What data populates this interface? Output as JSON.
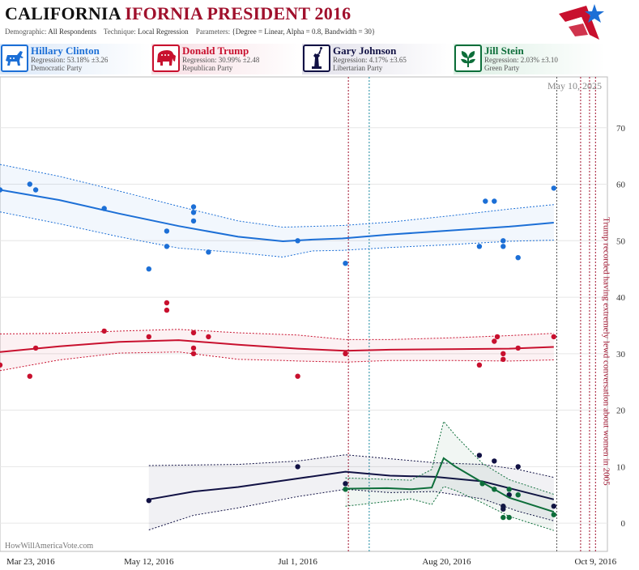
{
  "header": {
    "title_part1": "CALIFORNIA",
    "title_part2": "IFORNIA PRESIDENT 2016",
    "demographic_label": "Demographic:",
    "demographic_value": "All Respondents",
    "technique_label": "Technique:",
    "technique_value": "Local Regression",
    "parameters_label": "Parameters:",
    "parameters_value": "{Degree = Linear, Alpha = 0.8, Bandwidth = 30}"
  },
  "candidates": [
    {
      "name": "Hillary Clinton",
      "regression": "Regression: 53.18% ±3.26",
      "party": "Democratic Party",
      "color": "#1c6fd6",
      "icon": "donkey-icon"
    },
    {
      "name": "Donald Trump",
      "regression": "Regression: 30.99% ±2.48",
      "party": "Republican Party",
      "color": "#c8102e",
      "icon": "elephant-icon"
    },
    {
      "name": "Gary Johnson",
      "regression": "Regression: 4.17% ±3.65",
      "party": "Libertarian Party",
      "color": "#111144",
      "icon": "statue-of-liberty-icon"
    },
    {
      "name": "Jill Stein",
      "regression": "Regression: 2.03% ±3.10",
      "party": "Green Party",
      "color": "#0d6e3a",
      "icon": "leaf-icon"
    }
  ],
  "chart_data": {
    "type": "scatter",
    "x_axis": {
      "start": "2016-03-23",
      "end": "2016-10-13",
      "ticks": [
        "Mar 23, 2016",
        "May 12, 2016",
        "Jul 1, 2016",
        "Aug 20, 2016",
        "Oct 9, 2016"
      ]
    },
    "y_axis": {
      "ylim": [
        -5,
        79
      ],
      "ticks": [
        0,
        10,
        20,
        30,
        40,
        50,
        60,
        70
      ],
      "position": "right"
    },
    "grid": true,
    "date_label": "May 10, 2025",
    "watermark": "HowWillAmericaVote.com",
    "annotation": "Trump recorded having extremely lewd conversation about women in 2005",
    "event_lines": [
      {
        "date": "2016-07-18",
        "color": "#a0102c"
      },
      {
        "date": "2016-07-25",
        "color": "#1a8aa0"
      },
      {
        "date": "2016-09-26",
        "color": "#555555"
      },
      {
        "date": "2016-10-04",
        "color": "#a0102c"
      },
      {
        "date": "2016-10-07",
        "color": "#a0102c"
      },
      {
        "date": "2016-10-09",
        "color": "#a0102c"
      }
    ],
    "series": [
      {
        "name": "Hillary Clinton",
        "color": "#1c6fd6",
        "points": [
          [
            "2016-03-23",
            59
          ],
          [
            "2016-04-02",
            60
          ],
          [
            "2016-04-04",
            59
          ],
          [
            "2016-04-27",
            55.7
          ],
          [
            "2016-05-12",
            45
          ],
          [
            "2016-05-18",
            49
          ],
          [
            "2016-05-18",
            51.7
          ],
          [
            "2016-05-27",
            53.5
          ],
          [
            "2016-05-27",
            55
          ],
          [
            "2016-05-27",
            56
          ],
          [
            "2016-06-01",
            48
          ],
          [
            "2016-07-01",
            50
          ],
          [
            "2016-07-17",
            46
          ],
          [
            "2016-08-31",
            49
          ],
          [
            "2016-09-08",
            49
          ],
          [
            "2016-09-02",
            57
          ],
          [
            "2016-09-05",
            57
          ],
          [
            "2016-09-08",
            50
          ],
          [
            "2016-09-13",
            47
          ],
          [
            "2016-09-25",
            59.3
          ]
        ],
        "fit": [
          [
            "2016-03-23",
            59
          ],
          [
            "2016-04-12",
            57.2
          ],
          [
            "2016-05-02",
            54.8
          ],
          [
            "2016-05-22",
            52.6
          ],
          [
            "2016-06-11",
            50.7
          ],
          [
            "2016-06-26",
            49.9
          ],
          [
            "2016-07-06",
            50.2
          ],
          [
            "2016-07-16",
            50.4
          ],
          [
            "2016-08-01",
            51.1
          ],
          [
            "2016-08-21",
            51.8
          ],
          [
            "2016-09-10",
            52.5
          ],
          [
            "2016-09-25",
            53.2
          ]
        ],
        "ci": [
          [
            [
              "2016-03-23",
              63.5
            ],
            [
              "2016-04-12",
              61.4
            ],
            [
              "2016-05-02",
              58.8
            ],
            [
              "2016-05-22",
              56.1
            ],
            [
              "2016-06-11",
              53.5
            ],
            [
              "2016-06-26",
              52.4
            ],
            [
              "2016-07-16",
              52.7
            ],
            [
              "2016-08-01",
              53.3
            ],
            [
              "2016-08-21",
              54.4
            ],
            [
              "2016-09-10",
              55.6
            ],
            [
              "2016-09-25",
              56.4
            ]
          ],
          [
            [
              "2016-03-23",
              55.1
            ],
            [
              "2016-04-12",
              53
            ],
            [
              "2016-05-02",
              50.7
            ],
            [
              "2016-05-22",
              48.7
            ],
            [
              "2016-06-11",
              47.9
            ],
            [
              "2016-06-26",
              47.1
            ],
            [
              "2016-07-06",
              48.2
            ],
            [
              "2016-07-16",
              48.3
            ],
            [
              "2016-08-01",
              48.8
            ],
            [
              "2016-08-21",
              49.3
            ],
            [
              "2016-09-10",
              49.9
            ],
            [
              "2016-09-25",
              50.1
            ]
          ]
        ]
      },
      {
        "name": "Donald Trump",
        "color": "#c8102e",
        "points": [
          [
            "2016-03-23",
            28
          ],
          [
            "2016-04-02",
            26
          ],
          [
            "2016-04-04",
            31
          ],
          [
            "2016-04-27",
            34
          ],
          [
            "2016-05-12",
            33
          ],
          [
            "2016-05-18",
            37.7
          ],
          [
            "2016-05-18",
            39
          ],
          [
            "2016-05-27",
            30
          ],
          [
            "2016-05-27",
            31
          ],
          [
            "2016-05-27",
            33.7
          ],
          [
            "2016-06-01",
            33
          ],
          [
            "2016-07-01",
            26
          ],
          [
            "2016-07-17",
            30
          ],
          [
            "2016-08-31",
            28
          ],
          [
            "2016-09-05",
            32.2
          ],
          [
            "2016-09-08",
            29
          ],
          [
            "2016-09-06",
            33
          ],
          [
            "2016-09-08",
            30
          ],
          [
            "2016-09-13",
            31
          ],
          [
            "2016-09-25",
            33
          ]
        ],
        "fit": [
          [
            "2016-03-23",
            30.3
          ],
          [
            "2016-04-12",
            31.3
          ],
          [
            "2016-05-02",
            32.1
          ],
          [
            "2016-05-22",
            32.4
          ],
          [
            "2016-06-11",
            31.6
          ],
          [
            "2016-07-01",
            30.9
          ],
          [
            "2016-07-17",
            30.5
          ],
          [
            "2016-08-01",
            30.7
          ],
          [
            "2016-08-21",
            30.8
          ],
          [
            "2016-09-10",
            30.9
          ],
          [
            "2016-09-25",
            31.2
          ]
        ],
        "ci": [
          [
            [
              "2016-03-23",
              33.5
            ],
            [
              "2016-04-12",
              33.6
            ],
            [
              "2016-05-02",
              34
            ],
            [
              "2016-05-22",
              34.3
            ],
            [
              "2016-06-11",
              33.7
            ],
            [
              "2016-07-01",
              33.3
            ],
            [
              "2016-07-17",
              32.5
            ],
            [
              "2016-08-01",
              32.5
            ],
            [
              "2016-08-21",
              32.8
            ],
            [
              "2016-09-10",
              33.2
            ],
            [
              "2016-09-25",
              33.6
            ]
          ],
          [
            [
              "2016-03-23",
              27
            ],
            [
              "2016-04-12",
              28.9
            ],
            [
              "2016-05-02",
              30.1
            ],
            [
              "2016-05-22",
              30.3
            ],
            [
              "2016-06-11",
              29
            ],
            [
              "2016-06-26",
              28.8
            ],
            [
              "2016-07-01",
              28.7
            ],
            [
              "2016-07-17",
              28.5
            ],
            [
              "2016-08-01",
              28.8
            ],
            [
              "2016-08-21",
              28.8
            ],
            [
              "2016-09-10",
              28.7
            ],
            [
              "2016-09-25",
              28.9
            ]
          ]
        ]
      },
      {
        "name": "Gary Johnson",
        "color": "#111144",
        "points": [
          [
            "2016-05-12",
            4
          ],
          [
            "2016-07-01",
            10
          ],
          [
            "2016-07-17",
            7
          ],
          [
            "2016-08-31",
            12
          ],
          [
            "2016-09-05",
            11
          ],
          [
            "2016-09-08",
            3
          ],
          [
            "2016-09-08",
            2.5
          ],
          [
            "2016-09-10",
            5
          ],
          [
            "2016-09-13",
            10
          ],
          [
            "2016-09-25",
            3
          ]
        ],
        "fit": [
          [
            "2016-05-12",
            4.2
          ],
          [
            "2016-05-27",
            5.6
          ],
          [
            "2016-06-11",
            6.4
          ],
          [
            "2016-07-01",
            7.9
          ],
          [
            "2016-07-17",
            9.1
          ],
          [
            "2016-08-01",
            8.4
          ],
          [
            "2016-08-16",
            8.2
          ],
          [
            "2016-09-01",
            7.4
          ],
          [
            "2016-09-13",
            5.8
          ],
          [
            "2016-09-25",
            4.2
          ]
        ],
        "ci": [
          [
            [
              "2016-05-12",
              10.2
            ],
            [
              "2016-05-27",
              10.3
            ],
            [
              "2016-06-11",
              10.4
            ],
            [
              "2016-07-01",
              11
            ],
            [
              "2016-07-17",
              12.1
            ],
            [
              "2016-08-01",
              11.4
            ],
            [
              "2016-08-16",
              10.7
            ],
            [
              "2016-09-01",
              10.4
            ],
            [
              "2016-09-13",
              9.5
            ],
            [
              "2016-09-25",
              8.1
            ]
          ],
          [
            [
              "2016-05-12",
              -1.2
            ],
            [
              "2016-05-27",
              1.4
            ],
            [
              "2016-06-11",
              2.7
            ],
            [
              "2016-07-01",
              4.7
            ],
            [
              "2016-07-17",
              6
            ],
            [
              "2016-08-01",
              5.4
            ],
            [
              "2016-08-16",
              5.6
            ],
            [
              "2016-09-01",
              4.3
            ],
            [
              "2016-09-13",
              2.1
            ],
            [
              "2016-09-25",
              0.4
            ]
          ]
        ]
      },
      {
        "name": "Jill Stein",
        "color": "#0d6e3a",
        "points": [
          [
            "2016-07-17",
            6
          ],
          [
            "2016-09-01",
            7
          ],
          [
            "2016-09-05",
            6
          ],
          [
            "2016-09-08",
            1
          ],
          [
            "2016-09-10",
            1
          ],
          [
            "2016-09-10",
            6
          ],
          [
            "2016-09-13",
            5
          ],
          [
            "2016-09-25",
            1.5
          ]
        ],
        "fit": [
          [
            "2016-07-17",
            6.1
          ],
          [
            "2016-07-31",
            6.2
          ],
          [
            "2016-08-08",
            6
          ],
          [
            "2016-08-15",
            6.3
          ],
          [
            "2016-08-19",
            11.5
          ],
          [
            "2016-08-23",
            10
          ],
          [
            "2016-09-01",
            7.2
          ],
          [
            "2016-09-10",
            4.5
          ],
          [
            "2016-09-25",
            2
          ]
        ],
        "ci": [
          [
            [
              "2016-07-17",
              8
            ],
            [
              "2016-08-08",
              7.6
            ],
            [
              "2016-08-15",
              9.5
            ],
            [
              "2016-08-19",
              18
            ],
            [
              "2016-08-23",
              15.5
            ],
            [
              "2016-09-01",
              10.6
            ],
            [
              "2016-09-10",
              7.7
            ],
            [
              "2016-09-25",
              5.1
            ]
          ],
          [
            [
              "2016-07-17",
              3
            ],
            [
              "2016-08-08",
              4.3
            ],
            [
              "2016-08-15",
              3.3
            ],
            [
              "2016-08-19",
              6.5
            ],
            [
              "2016-08-23",
              5.8
            ],
            [
              "2016-09-01",
              3.6
            ],
            [
              "2016-09-10",
              1.2
            ],
            [
              "2016-09-25",
              -1.3
            ]
          ]
        ]
      }
    ]
  }
}
